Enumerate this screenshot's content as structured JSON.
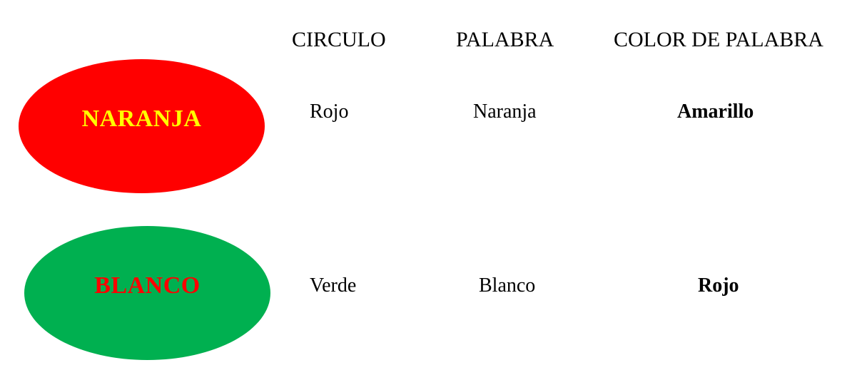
{
  "headers": {
    "circulo": "CIRCULO",
    "palabra": "PALABRA",
    "color_de_palabra": "COLOR DE PALABRA"
  },
  "rows": [
    {
      "oval_word": "NARANJA",
      "oval_fill": "#ff0000",
      "oval_text_color": "#ffff00",
      "circulo": "Rojo",
      "palabra": "Naranja",
      "color_de_palabra": "Amarillo"
    },
    {
      "oval_word": "BLANCO",
      "oval_fill": "#00b050",
      "oval_text_color": "#ff0000",
      "circulo": "Verde",
      "palabra": "Blanco",
      "color_de_palabra": "Rojo"
    }
  ]
}
